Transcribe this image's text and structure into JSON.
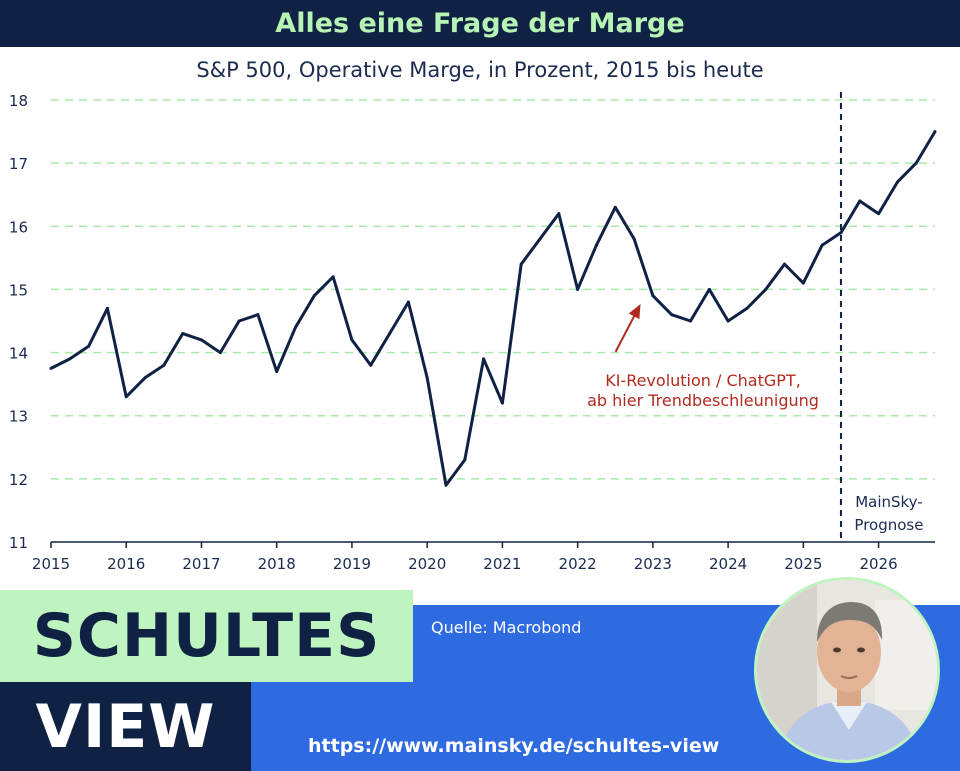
{
  "header": {
    "title": "Alles eine Frage der Marge"
  },
  "subtitle": "S&P 500, Operative Marge, in Prozent, 2015 bis heute",
  "chart_data": {
    "type": "line",
    "x": [
      2015.0,
      2015.25,
      2015.5,
      2015.75,
      2016.0,
      2016.25,
      2016.5,
      2016.75,
      2017.0,
      2017.25,
      2017.5,
      2017.75,
      2018.0,
      2018.25,
      2018.5,
      2018.75,
      2019.0,
      2019.25,
      2019.5,
      2019.75,
      2020.0,
      2020.25,
      2020.5,
      2020.75,
      2021.0,
      2021.25,
      2021.5,
      2021.75,
      2022.0,
      2022.25,
      2022.5,
      2022.75,
      2023.0,
      2023.25,
      2023.5,
      2023.75,
      2024.0,
      2024.25,
      2024.5,
      2024.75,
      2025.0,
      2025.25,
      2025.5,
      2025.75,
      2026.0,
      2026.25,
      2026.5,
      2026.75
    ],
    "series": [
      {
        "values": [
          13.75,
          13.9,
          14.1,
          14.7,
          13.3,
          13.6,
          13.8,
          14.3,
          14.2,
          14.0,
          14.5,
          14.6,
          13.7,
          14.4,
          14.9,
          15.2,
          14.2,
          13.8,
          14.3,
          14.8,
          13.6,
          11.9,
          12.3,
          13.9,
          13.2,
          15.4,
          15.8,
          16.2,
          15.0,
          15.7,
          16.3,
          15.8,
          14.9,
          14.6,
          14.5,
          15.0,
          14.5,
          14.7,
          15.0,
          15.4,
          15.1,
          15.7,
          15.9,
          16.4,
          16.2,
          16.7,
          17.0,
          17.5
        ]
      }
    ],
    "ylim": [
      11,
      18
    ],
    "yticks": [
      "11",
      "12",
      "13",
      "14",
      "15",
      "16",
      "17",
      "18"
    ],
    "xlim": [
      2015,
      2026.75
    ],
    "xticks": [
      "2015",
      "2016",
      "2017",
      "2018",
      "2019",
      "2020",
      "2021",
      "2022",
      "2023",
      "2024",
      "2025",
      "2026"
    ],
    "grid": true,
    "forecast_start_x": 2025.5,
    "annotations": {
      "ki_line1": "KI-Revolution / ChatGPT,",
      "ki_line2": "ab hier Trendbeschleunigung",
      "ki_arrow_target": {
        "x": 2022.85,
        "y": 14.9
      },
      "forecast_line1": "MainSky-",
      "forecast_line2": "Prognose"
    },
    "colors": {
      "line": "#0f2244",
      "grid": "#a8eaa6",
      "annotation": "#b02a1e"
    }
  },
  "branding": {
    "top": "SCHULTES",
    "bottom": "VIEW"
  },
  "source": "Quelle: Macrobond",
  "url": "https://www.mainsky.de/schultes-view",
  "colors": {
    "navy": "#0f2244",
    "mint": "#bff3c0",
    "blue": "#2f6be0"
  }
}
